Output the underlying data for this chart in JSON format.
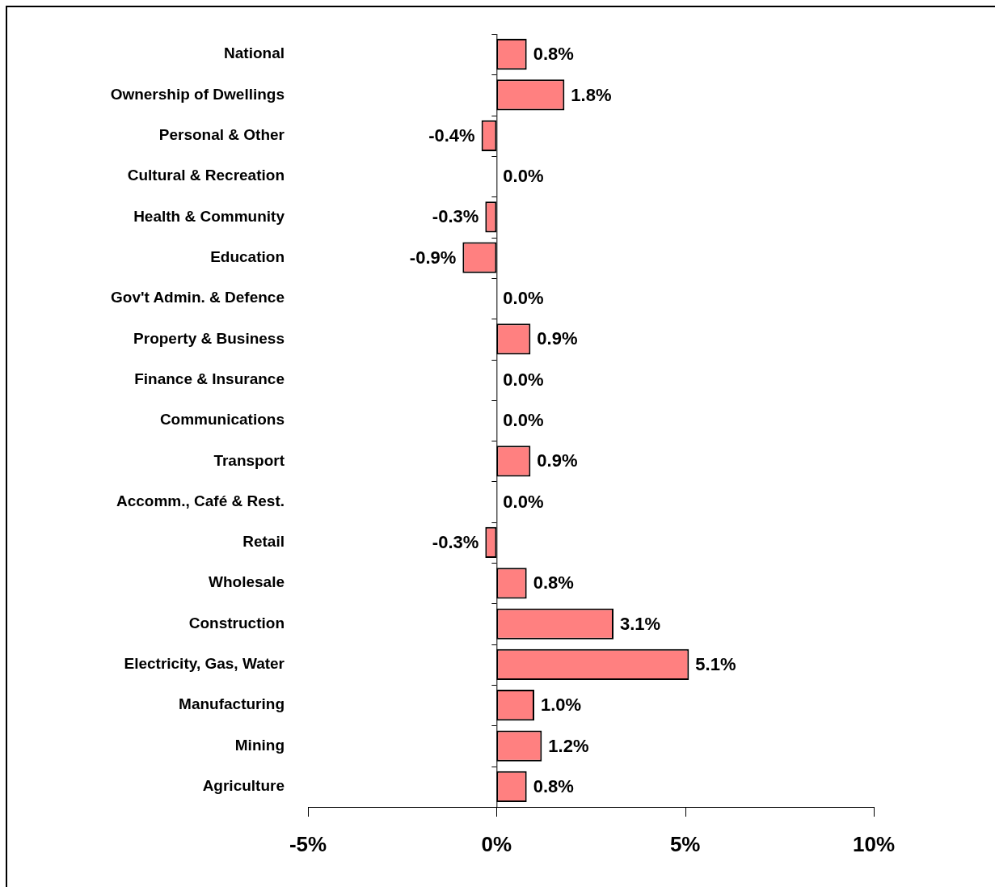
{
  "chart_data": {
    "type": "bar",
    "orientation": "horizontal",
    "categories": [
      "National",
      "Ownership of Dwellings",
      "Personal & Other",
      "Cultural & Recreation",
      "Health & Community",
      "Education",
      "Gov't Admin. & Defence",
      "Property & Business",
      "Finance & Insurance",
      "Communications",
      "Transport",
      "Accomm., Café & Rest.",
      "Retail",
      "Wholesale",
      "Construction",
      "Electricity, Gas, Water",
      "Manufacturing",
      "Mining",
      "Agriculture"
    ],
    "values": [
      0.8,
      1.8,
      -0.4,
      0.0,
      -0.3,
      -0.9,
      0.0,
      0.9,
      0.0,
      0.0,
      0.9,
      0.0,
      -0.3,
      0.8,
      3.1,
      5.1,
      1.0,
      1.2,
      0.8
    ],
    "value_labels": [
      "0.8%",
      "1.8%",
      "-0.4%",
      "0.0%",
      "-0.3%",
      "-0.9%",
      "0.0%",
      "0.9%",
      "0.0%",
      "0.0%",
      "0.9%",
      "0.0%",
      "-0.3%",
      "0.8%",
      "3.1%",
      "5.1%",
      "1.0%",
      "1.2%",
      "0.8%"
    ],
    "color": "#ff8080",
    "xlim": [
      -5,
      10
    ],
    "xticks": [
      {
        "value": -5,
        "label": "-5%"
      },
      {
        "value": 0,
        "label": "0%"
      },
      {
        "value": 5,
        "label": "5%"
      },
      {
        "value": 10,
        "label": "10%"
      }
    ],
    "legend": false
  }
}
